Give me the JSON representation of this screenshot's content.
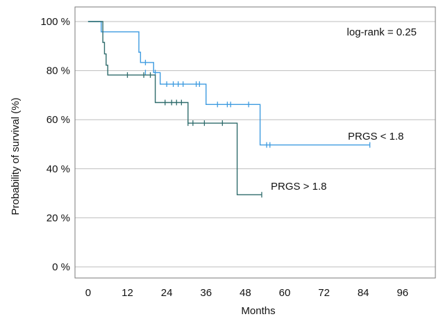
{
  "chart_data": {
    "type": "line",
    "title": "",
    "xlabel": "Months",
    "ylabel": "Probability of survival (%)",
    "xlim": [
      -4,
      106
    ],
    "ylim": [
      0,
      100
    ],
    "x_ticks": [
      0,
      12,
      24,
      36,
      48,
      60,
      72,
      84,
      96
    ],
    "x_tick_labels": [
      "0",
      "12",
      "24",
      "36",
      "48",
      "60",
      "72",
      "84",
      "96"
    ],
    "y_ticks": [
      0,
      20,
      40,
      60,
      80,
      100
    ],
    "y_tick_labels": [
      "0 %",
      "20 %",
      "40 %",
      "60 %",
      "80 %",
      "100 %"
    ],
    "grid": "horizontal",
    "annotation": "log-rank = 0.25",
    "series": [
      {
        "name": "PRGS < 1.8",
        "color": "#3d9be0",
        "steps": [
          [
            0,
            100
          ],
          [
            4,
            95.8
          ],
          [
            15.5,
            87.5
          ],
          [
            16,
            83.3
          ],
          [
            20,
            79.2
          ],
          [
            22,
            74.5
          ],
          [
            36,
            66.2
          ],
          [
            52.5,
            49.7
          ],
          [
            86,
            49.7
          ]
        ],
        "censored": [
          [
            17.5,
            83.3
          ],
          [
            17.5,
            79.2
          ],
          [
            20.5,
            79.2
          ],
          [
            24,
            74.5
          ],
          [
            26,
            74.5
          ],
          [
            27.5,
            74.5
          ],
          [
            29,
            74.5
          ],
          [
            33,
            74.5
          ],
          [
            34,
            74.5
          ],
          [
            39.5,
            66.2
          ],
          [
            42.5,
            66.2
          ],
          [
            43.5,
            66.2
          ],
          [
            49,
            66.2
          ],
          [
            54.5,
            49.7
          ],
          [
            55.5,
            49.7
          ],
          [
            86,
            49.7
          ]
        ]
      },
      {
        "name": "PRGS > 1.8",
        "color": "#2e6b6b",
        "steps": [
          [
            0,
            100
          ],
          [
            4.5,
            91.5
          ],
          [
            5,
            86.8
          ],
          [
            5.5,
            82.2
          ],
          [
            6,
            78.2
          ],
          [
            20.5,
            67.0
          ],
          [
            30.5,
            58.6
          ],
          [
            45.5,
            29.4
          ],
          [
            53,
            29.4
          ]
        ],
        "censored": [
          [
            12,
            78.2
          ],
          [
            17,
            78.2
          ],
          [
            19,
            78.2
          ],
          [
            23.5,
            67.0
          ],
          [
            25.5,
            67.0
          ],
          [
            27,
            67.0
          ],
          [
            28.5,
            67.0
          ],
          [
            30.5,
            58.6
          ],
          [
            32,
            58.6
          ],
          [
            35.5,
            58.6
          ],
          [
            41,
            58.6
          ],
          [
            53,
            29.4
          ]
        ]
      }
    ]
  }
}
